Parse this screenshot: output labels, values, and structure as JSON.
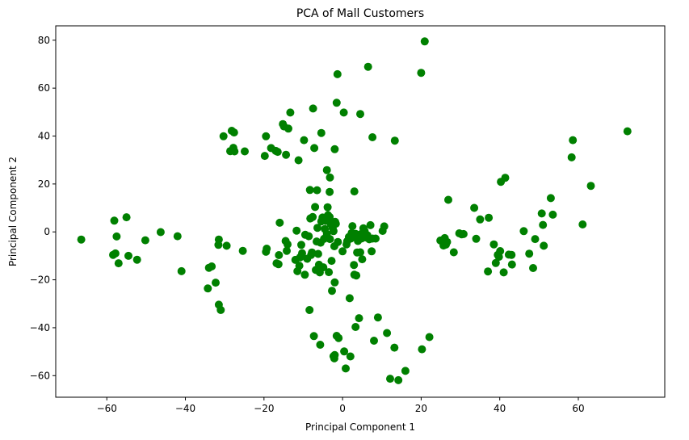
{
  "chart_data": {
    "type": "scatter",
    "title": "PCA of Mall Customers",
    "xlabel": "Principal Component 1",
    "ylabel": "Principal Component 2",
    "xlim": [
      -73,
      82
    ],
    "ylim": [
      -69,
      86
    ],
    "xticks": [
      -60,
      -40,
      -20,
      0,
      20,
      40,
      60
    ],
    "yticks": [
      -60,
      -40,
      -20,
      0,
      20,
      40,
      60,
      80
    ],
    "grid": false,
    "legend": "none",
    "marker_color": "#008000",
    "points": [
      [
        -66.5,
        -3.2
      ],
      [
        -58.4,
        -9.6
      ],
      [
        -57.8,
        -9.0
      ],
      [
        -58.1,
        4.7
      ],
      [
        -57.5,
        -1.9
      ],
      [
        -57.0,
        -13.1
      ],
      [
        -55.0,
        6.1
      ],
      [
        -54.5,
        -10.0
      ],
      [
        -52.3,
        -11.6
      ],
      [
        -50.2,
        -3.5
      ],
      [
        -46.3,
        -0.1
      ],
      [
        -42.0,
        -1.8
      ],
      [
        -41.0,
        -16.4
      ],
      [
        -34.3,
        -23.6
      ],
      [
        -34.0,
        -15.0
      ],
      [
        -33.3,
        -14.4
      ],
      [
        -32.3,
        -21.2
      ],
      [
        -31.6,
        -5.4
      ],
      [
        -31.5,
        -3.2
      ],
      [
        -31.5,
        -30.4
      ],
      [
        -31.0,
        -32.6
      ],
      [
        -29.5,
        -5.8
      ],
      [
        -25.4,
        -7.9
      ],
      [
        -19.5,
        -8.3
      ],
      [
        -19.3,
        -7.0
      ],
      [
        -16.8,
        -13.1
      ],
      [
        -16.3,
        -13.5
      ],
      [
        -16.2,
        -9.7
      ],
      [
        -16.0,
        3.8
      ],
      [
        -14.5,
        -3.8
      ],
      [
        -14.0,
        -5.2
      ],
      [
        -14.2,
        -7.9
      ],
      [
        -12.0,
        -11.7
      ],
      [
        -11.5,
        -16.4
      ],
      [
        -11.7,
        0.5
      ],
      [
        -11.0,
        -14.1
      ],
      [
        -10.8,
        -10.6
      ],
      [
        -10.5,
        -5.4
      ],
      [
        -10.3,
        -8.9
      ],
      [
        -9.6,
        -17.9
      ],
      [
        -9.5,
        -1.2
      ],
      [
        -9.0,
        -11.2
      ],
      [
        -8.6,
        -1.8
      ],
      [
        -8.2,
        5.6
      ],
      [
        -8.0,
        -9.6
      ],
      [
        -7.8,
        -8.6
      ],
      [
        -8.3,
        17.5
      ],
      [
        -7.6,
        6.2
      ],
      [
        -7.0,
        10.4
      ],
      [
        -6.8,
        -15.9
      ],
      [
        -30.3,
        39.9
      ],
      [
        -28.6,
        33.7
      ],
      [
        -28.2,
        42.2
      ],
      [
        -27.6,
        41.5
      ],
      [
        -27.8,
        35.1
      ],
      [
        -27.5,
        33.6
      ],
      [
        -24.9,
        33.6
      ],
      [
        -19.8,
        31.7
      ],
      [
        -19.5,
        39.9
      ],
      [
        -18.2,
        35.0
      ],
      [
        -17.0,
        33.8
      ],
      [
        -16.5,
        33.4
      ],
      [
        -15.2,
        45.0
      ],
      [
        -14.9,
        44.0
      ],
      [
        -14.4,
        32.2
      ],
      [
        -13.8,
        43.1
      ],
      [
        -13.3,
        49.8
      ],
      [
        -11.2,
        29.9
      ],
      [
        -9.8,
        38.3
      ],
      [
        -7.5,
        51.5
      ],
      [
        -7.2,
        35.0
      ],
      [
        -6.5,
        17.4
      ],
      [
        -5.4,
        41.3
      ],
      [
        -4.0,
        25.8
      ],
      [
        -3.2,
        22.7
      ],
      [
        -2.0,
        34.5
      ],
      [
        -1.5,
        53.9
      ],
      [
        -1.3,
        65.8
      ],
      [
        0.3,
        49.8
      ],
      [
        4.5,
        49.2
      ],
      [
        6.5,
        68.9
      ],
      [
        7.6,
        39.5
      ],
      [
        13.3,
        38.1
      ],
      [
        20.0,
        66.4
      ],
      [
        20.9,
        79.5
      ],
      [
        -3.3,
        16.7
      ],
      [
        3.0,
        16.9
      ],
      [
        -6.6,
        -4.0
      ],
      [
        -6.4,
        1.7
      ],
      [
        -6.2,
        -9.2
      ],
      [
        -6.0,
        -13.7
      ],
      [
        -5.8,
        -16.9
      ],
      [
        -5.6,
        -4.5
      ],
      [
        -5.4,
        4.4
      ],
      [
        -5.1,
        6.0
      ],
      [
        -4.9,
        -14.8
      ],
      [
        -4.7,
        -2.9
      ],
      [
        -4.5,
        1.2
      ],
      [
        -4.3,
        4.6
      ],
      [
        -4.0,
        -0.9
      ],
      [
        -3.8,
        10.3
      ],
      [
        -3.7,
        7.0
      ],
      [
        -3.5,
        -16.8
      ],
      [
        -3.3,
        6.2
      ],
      [
        -3.2,
        -3.0
      ],
      [
        -3.0,
        3.3
      ],
      [
        -2.8,
        -12.1
      ],
      [
        -2.7,
        -24.6
      ],
      [
        -2.5,
        1.5
      ],
      [
        -2.3,
        0.3
      ],
      [
        -2.1,
        -6.0
      ],
      [
        -2.0,
        -21.1
      ],
      [
        -1.9,
        4.2
      ],
      [
        -1.7,
        3.4
      ],
      [
        -1.5,
        -43.4
      ],
      [
        -1.2,
        -4.2
      ],
      [
        -1.0,
        -44.3
      ],
      [
        0.0,
        -8.1
      ],
      [
        0.4,
        -49.9
      ],
      [
        0.8,
        -57.0
      ],
      [
        1.0,
        -5.2
      ],
      [
        1.2,
        -3.9
      ],
      [
        1.6,
        -2.1
      ],
      [
        1.8,
        -27.7
      ],
      [
        2.0,
        -52.0
      ],
      [
        2.1,
        -2.8
      ],
      [
        2.3,
        -0.5
      ],
      [
        2.5,
        2.4
      ],
      [
        2.7,
        -1.1
      ],
      [
        2.9,
        -13.8
      ],
      [
        3.1,
        -1.4
      ],
      [
        3.3,
        -0.8
      ],
      [
        3.5,
        -18.2
      ],
      [
        3.7,
        -8.6
      ],
      [
        3.9,
        -3.8
      ],
      [
        4.2,
        -36.0
      ],
      [
        4.5,
        -8.5
      ],
      [
        4.7,
        -0.9
      ],
      [
        4.9,
        -2.7
      ],
      [
        5.0,
        -11.4
      ],
      [
        5.3,
        1.5
      ],
      [
        5.6,
        0.3
      ],
      [
        5.9,
        -2.3
      ],
      [
        6.3,
        -1.4
      ],
      [
        6.8,
        -3.1
      ],
      [
        7.1,
        2.8
      ],
      [
        7.6,
        -2.8
      ],
      [
        7.4,
        -8.1
      ],
      [
        8.0,
        -45.4
      ],
      [
        8.4,
        -2.8
      ],
      [
        9.0,
        -35.7
      ],
      [
        10.2,
        0.4
      ],
      [
        10.6,
        2.3
      ],
      [
        11.3,
        -42.2
      ],
      [
        12.1,
        -61.3
      ],
      [
        13.2,
        -48.3
      ],
      [
        14.2,
        -61.9
      ],
      [
        16.0,
        -58.0
      ],
      [
        20.2,
        -49.0
      ],
      [
        22.1,
        -43.9
      ],
      [
        -8.4,
        -32.6
      ],
      [
        -7.3,
        -43.5
      ],
      [
        -5.7,
        -47.1
      ],
      [
        -2.1,
        -52.8
      ],
      [
        -2.3,
        -51.9
      ],
      [
        -2.0,
        -51.4
      ],
      [
        3.3,
        -39.7
      ],
      [
        3.0,
        -17.9
      ],
      [
        24.9,
        -3.6
      ],
      [
        25.4,
        -4.0
      ],
      [
        25.7,
        -5.7
      ],
      [
        26.0,
        -2.6
      ],
      [
        26.3,
        -5.3
      ],
      [
        26.6,
        -4.2
      ],
      [
        26.9,
        13.4
      ],
      [
        28.3,
        -8.5
      ],
      [
        29.7,
        -0.6
      ],
      [
        30.3,
        -1.0
      ],
      [
        30.8,
        -0.9
      ],
      [
        33.5,
        10.0
      ],
      [
        34.0,
        -2.9
      ],
      [
        35.0,
        5.2
      ],
      [
        37.0,
        -16.5
      ],
      [
        37.2,
        5.9
      ],
      [
        38.5,
        -5.2
      ],
      [
        39.0,
        -13.0
      ],
      [
        39.5,
        -9.6
      ],
      [
        39.8,
        -10.4
      ],
      [
        40.1,
        -8.0
      ],
      [
        40.3,
        20.9
      ],
      [
        41.0,
        -16.9
      ],
      [
        41.4,
        22.6
      ],
      [
        42.3,
        -9.5
      ],
      [
        43.1,
        -13.6
      ],
      [
        43.0,
        -9.6
      ],
      [
        46.1,
        0.3
      ],
      [
        47.5,
        -9.1
      ],
      [
        48.5,
        -15.1
      ],
      [
        49.0,
        -3.0
      ],
      [
        50.7,
        7.7
      ],
      [
        51.0,
        2.9
      ],
      [
        51.2,
        -5.8
      ],
      [
        53.0,
        14.1
      ],
      [
        53.5,
        7.2
      ],
      [
        58.3,
        31.1
      ],
      [
        58.6,
        38.3
      ],
      [
        61.1,
        3.1
      ],
      [
        63.2,
        19.2
      ],
      [
        72.5,
        42.0
      ]
    ]
  }
}
